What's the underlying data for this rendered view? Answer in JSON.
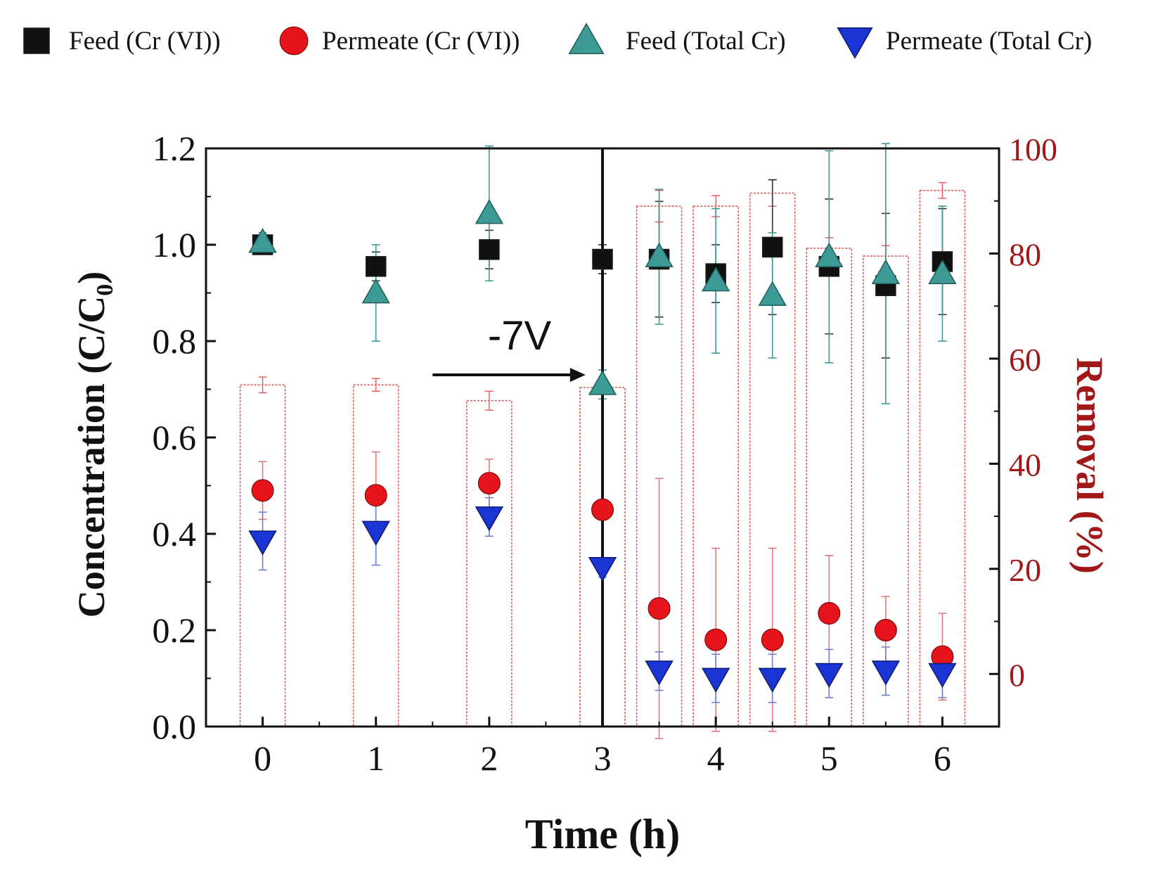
{
  "chart_data": {
    "type": "scatter+bar",
    "xlabel": "Time (h)",
    "ylabel_left": "Concentration (C/C",
    "ylabel_left_sub": "0",
    "ylabel_left_close": ")",
    "ylabel_right": "Removal (%)",
    "xlim": [
      -0.5,
      6.5
    ],
    "ylim_left": [
      0.0,
      1.2
    ],
    "ylim_right": [
      -10,
      100
    ],
    "x_ticks": [
      0,
      1,
      2,
      3,
      4,
      5,
      6
    ],
    "x_tick_labels": [
      "0",
      "1",
      "2",
      "3",
      "4",
      "5",
      "6"
    ],
    "y_left_ticks": [
      0.0,
      0.2,
      0.4,
      0.6,
      0.8,
      1.0,
      1.2
    ],
    "y_left_tick_labels": [
      "0.0",
      "0.2",
      "0.4",
      "0.6",
      "0.8",
      "1.0",
      "1.2"
    ],
    "y_right_ticks": [
      0,
      20,
      40,
      60,
      80,
      100
    ],
    "y_right_tick_labels": [
      "0",
      "20",
      "40",
      "60",
      "80",
      "100"
    ],
    "annotation": {
      "text": "-7V",
      "x_from": 1.5,
      "x_to": 2.85,
      "y": 0.73
    },
    "voltage_line_x": 3,
    "legend_position": "top",
    "legend": [
      {
        "label": "Feed (Cr (VI))",
        "marker": "square",
        "color": "#111111"
      },
      {
        "label": "Permeate (Cr (VI))",
        "marker": "circle",
        "color": "#e8141c"
      },
      {
        "label": "Feed (Total Cr)",
        "marker": "triangle-up",
        "color": "#3d9a96"
      },
      {
        "label": "Permeate (Total Cr)",
        "marker": "triangle-down",
        "color": "#1a35d4"
      }
    ],
    "removal_bars": {
      "name": "Removal (%)",
      "color": "#e05a5a",
      "x": [
        0,
        1,
        2,
        3,
        3.5,
        4,
        4.5,
        5,
        5.5,
        6
      ],
      "values": [
        55,
        55,
        52,
        54.5,
        89,
        89,
        91.5,
        81,
        79.5,
        92
      ],
      "errors": [
        1.5,
        1.2,
        1.8,
        1,
        3,
        2,
        2.5,
        2,
        2,
        1.5
      ]
    },
    "series": [
      {
        "name": "Feed (Cr (VI))",
        "marker": "square",
        "color": "#111111",
        "x": [
          0,
          1,
          2,
          3,
          3.5,
          4,
          4.5,
          5,
          5.5,
          6
        ],
        "values": [
          1.0,
          0.955,
          0.99,
          0.97,
          0.97,
          0.94,
          0.995,
          0.955,
          0.915,
          0.965
        ],
        "errors": [
          0.02,
          0.03,
          0.04,
          0.03,
          0.12,
          0.06,
          0.14,
          0.14,
          0.15,
          0.11
        ]
      },
      {
        "name": "Feed (Total Cr)",
        "marker": "triangle-up",
        "color": "#3d9a96",
        "x": [
          0,
          1,
          2,
          3,
          3.5,
          4,
          4.5,
          5,
          5.5,
          6
        ],
        "values": [
          1.005,
          0.9,
          1.065,
          0.71,
          0.975,
          0.925,
          0.895,
          0.975,
          0.94,
          0.94
        ],
        "errors": [
          0.02,
          0.1,
          0.14,
          0.03,
          0.14,
          0.15,
          0.13,
          0.22,
          0.27,
          0.14
        ]
      },
      {
        "name": "Permeate (Cr (VI))",
        "marker": "circle",
        "color": "#e8141c",
        "x": [
          0,
          1,
          2,
          3,
          3.5,
          4,
          4.5,
          5,
          5.5,
          6
        ],
        "values": [
          0.49,
          0.48,
          0.505,
          0.45,
          0.245,
          0.18,
          0.18,
          0.235,
          0.2,
          0.145
        ],
        "errors": [
          0.06,
          0.09,
          0.05,
          0.02,
          0.27,
          0.19,
          0.19,
          0.12,
          0.07,
          0.09
        ]
      },
      {
        "name": "Permeate (Total Cr)",
        "marker": "triangle-down",
        "color": "#1a35d4",
        "x": [
          0,
          1,
          2,
          3,
          3.5,
          4,
          4.5,
          5,
          5.5,
          6
        ],
        "values": [
          0.385,
          0.405,
          0.435,
          0.33,
          0.115,
          0.1,
          0.1,
          0.11,
          0.115,
          0.11
        ],
        "errors": [
          0.06,
          0.07,
          0.04,
          0.02,
          0.04,
          0.05,
          0.05,
          0.05,
          0.05,
          0.05
        ]
      }
    ]
  }
}
